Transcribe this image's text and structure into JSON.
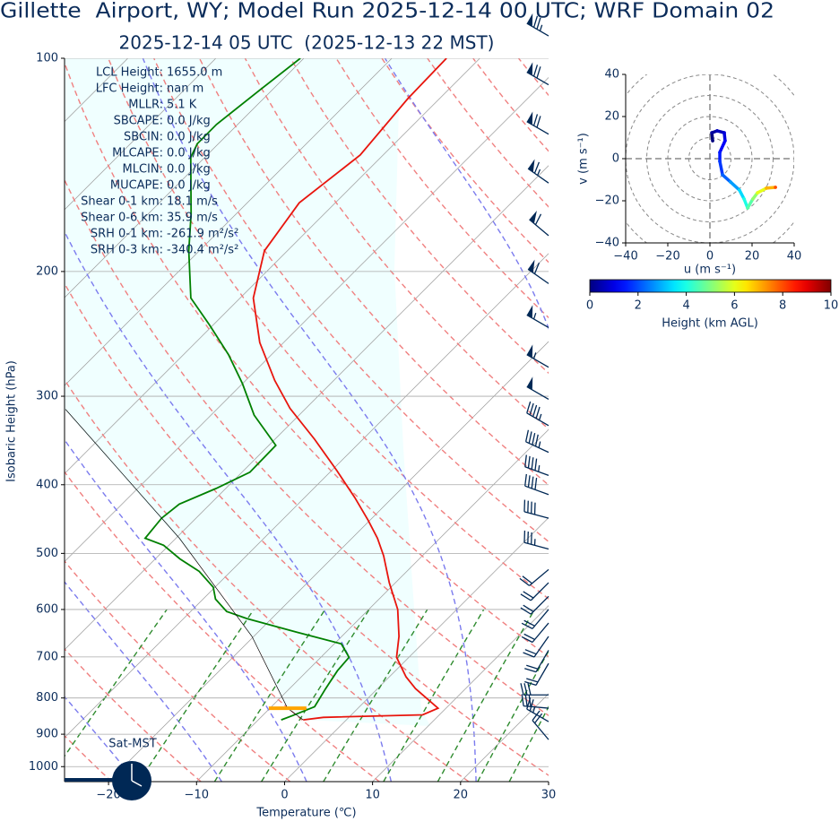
{
  "chart_data": [
    {
      "type": "skewt",
      "title": "Gillette  Airport, WY; Model Run 2025-12-14 00 UTC; WRF Domain 02",
      "subtitle": "2025-12-14 05 UTC  (2025-12-13 22 MST)",
      "xlabel": "Temperature (℃)",
      "ylabel": "Isobaric Height (hPa)",
      "xlim": [
        -25,
        30
      ],
      "ylim": [
        1050,
        100
      ],
      "yscale": "log",
      "grid": true,
      "xticks": [
        {
          "value": -20,
          "label": "−20"
        },
        {
          "value": -10,
          "label": "−10"
        },
        0,
        10,
        20,
        30
      ],
      "yticks": [
        100,
        200,
        300,
        400,
        500,
        600,
        700,
        800,
        900,
        1000
      ],
      "series": [
        {
          "color": "#e8150d",
          "pressure": [
            859,
            852,
            845,
            827,
            776,
            747,
            701,
            655,
            600,
            550,
            504,
            476,
            449,
            417,
            382,
            345,
            312,
            285,
            252,
            218,
            187,
            160,
            137,
            114,
            100
          ],
          "values": [
            -4.9,
            -2.9,
            8.1,
            9.1,
            4.3,
            1.9,
            -1.4,
            -3.5,
            -6.7,
            -10.7,
            -14.4,
            -17.1,
            -20.2,
            -24.3,
            -29.4,
            -35.5,
            -41.8,
            -46.7,
            -52.7,
            -58.5,
            -62.6,
            -64.1,
            -62.6,
            -63.6,
            -63.8
          ]
        },
        {
          "color": "#008000",
          "pressure": [
            859,
            847,
            823,
            776,
            732,
            701,
            671,
            646,
            618,
            604,
            580,
            558,
            530,
            509,
            487,
            476,
            446,
            426,
            405,
            384,
            352,
            319,
            288,
            262,
            238,
            218,
            187,
            166,
            138,
            132,
            124,
            111,
            100
          ],
          "values": [
            -7.4,
            -6.6,
            -5.1,
            -5.9,
            -6.6,
            -6.8,
            -9.2,
            -15.6,
            -22.8,
            -25.9,
            -28.6,
            -30.2,
            -33.6,
            -37.2,
            -40.6,
            -43.5,
            -43.9,
            -43.5,
            -41.1,
            -39.1,
            -39.2,
            -45.1,
            -50.0,
            -54.9,
            -60.4,
            -65.6,
            -71.2,
            -75.1,
            -81.6,
            -82.4,
            -82.4,
            -81.4,
            -80.4
          ]
        },
        {
          "color": "#000000",
          "pressure": [
            859,
            827,
            655,
            476,
            313
          ],
          "values": [
            -4.9,
            -8.0,
            -20.2,
            -39.6,
            -67.2
          ]
        }
      ],
      "lcl": {
        "pressure": 827,
        "temperature": -8.0,
        "color": "#ffa500"
      },
      "wind_barbs": {
        "color": "#002855",
        "pressure": [
          93,
          109,
          128,
          150,
          178,
          208,
          240,
          273,
          303,
          330,
          360,
          388,
          413,
          446,
          493,
          527,
          550,
          575,
          600,
          627,
          655,
          685,
          715,
          792,
          827,
          864,
          916
        ],
        "speed": [
          75,
          70,
          70,
          65,
          60,
          60,
          55,
          55,
          50,
          45,
          45,
          45,
          40,
          40,
          35,
          20,
          20,
          20,
          20,
          20,
          20,
          20,
          20,
          30,
          30,
          25,
          20
        ],
        "direction": [
          300,
          300,
          300,
          305,
          310,
          305,
          300,
          300,
          300,
          300,
          295,
          290,
          290,
          285,
          285,
          230,
          225,
          225,
          220,
          220,
          215,
          210,
          210,
          270,
          275,
          300,
          320
        ]
      },
      "annotations": [
        {
          "label": "LCL Height:",
          "value": "1655.0 m"
        },
        {
          "label": "LFC Height:",
          "value": "nan m"
        },
        {
          "label": "MLLR:",
          "value": "5.1 K"
        },
        {
          "label": "SBCAPE:",
          "value": "0.0 J/kg"
        },
        {
          "label": "SBCIN:",
          "value": "0.0 J/kg"
        },
        {
          "label": "MLCAPE:",
          "value": "0.0 J/kg"
        },
        {
          "label": "MLCIN:",
          "value": "0.0 J/kg"
        },
        {
          "label": "MUCAPE:",
          "value": "0.0 J/kg"
        },
        {
          "label": "Shear 0-1 km:",
          "value": "18.1 m/s"
        },
        {
          "label": "Shear 0-6 km:",
          "value": "35.9 m/s"
        },
        {
          "label": "SRH 0-1 km:",
          "value": "-261.9 m²/s²"
        },
        {
          "label": "SRH 0-3 km:",
          "value": "-340.4 m²/s²"
        }
      ],
      "time_label": "Sat-MST"
    },
    {
      "type": "hodograph",
      "xlabel": "u (m s⁻¹)",
      "ylabel": "v (m s⁻¹)",
      "xlim": [
        -40,
        40
      ],
      "ylim": [
        -40,
        40
      ],
      "xticks": [
        {
          "value": -40,
          "label": "−40"
        },
        {
          "value": -20,
          "label": "−20"
        },
        0,
        20,
        40
      ],
      "yticks": [
        {
          "value": -40,
          "label": "−40"
        },
        {
          "value": -20,
          "label": "−20"
        },
        0,
        20,
        40
      ],
      "u": [
        1.3,
        0.9,
        3.4,
        6.8,
        7.2,
        4.7,
        4.7,
        6.0,
        9.8,
        14.0,
        16.2,
        17.9,
        20.4,
        22.6,
        26.8,
        31.1
      ],
      "v": [
        8.5,
        12.3,
        13.2,
        12.3,
        8.5,
        3.0,
        -1.3,
        -7.7,
        -11.1,
        -14.9,
        -19.1,
        -23.4,
        -19.1,
        -16.2,
        -14.0,
        -13.6
      ],
      "height": [
        0,
        0.3,
        0.6,
        0.9,
        1.2,
        1.5,
        1.8,
        2.2,
        2.8,
        3.4,
        4.0,
        4.6,
        5.2,
        6.0,
        7.0,
        8.0
      ],
      "colorbar": {
        "label": "Height (km AGL)",
        "lim": [
          0,
          10
        ],
        "ticks": [
          0,
          2,
          4,
          6,
          8,
          10
        ],
        "colormap": "jet"
      }
    }
  ]
}
